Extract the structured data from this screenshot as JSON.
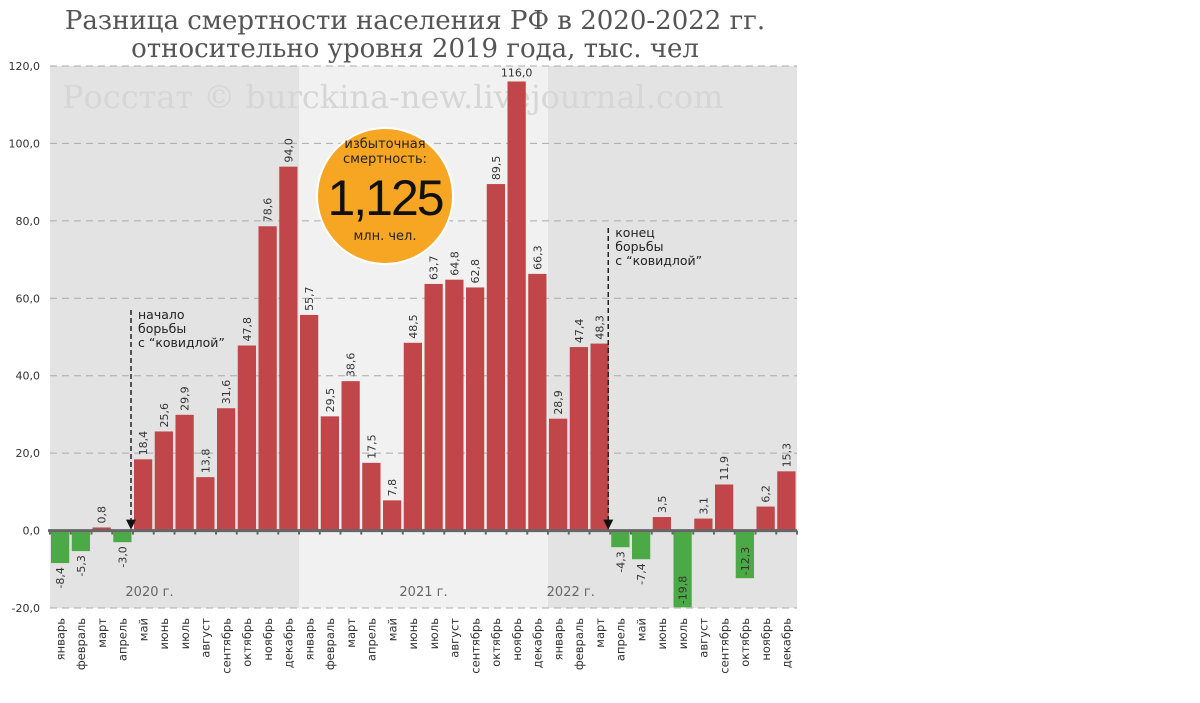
{
  "chart_data": {
    "type": "bar",
    "title": [
      "Разница смертности населения РФ в 2020-2022 гг.",
      "относительно уровня 2019 года, тыс. чел"
    ],
    "watermark": "Росстат © burckina-new.livejournal.com",
    "ylim": [
      -20,
      120
    ],
    "yticks": [
      "120,0",
      "100,0",
      "80,0",
      "60,0",
      "40,0",
      "20,0",
      "0,0",
      "-20,0"
    ],
    "ytick_values": [
      120,
      100,
      80,
      60,
      40,
      20,
      0,
      -20
    ],
    "grid": true,
    "years": [
      "2020 г.",
      "2021 г.",
      "2022 г."
    ],
    "categories": [
      "январь",
      "февраль",
      "март",
      "апрель",
      "май",
      "июнь",
      "июль",
      "август",
      "сентябрь",
      "октябрь",
      "ноябрь",
      "декабрь",
      "январь",
      "февраль",
      "март",
      "апрель",
      "май",
      "июнь",
      "июль",
      "август",
      "сентябрь",
      "октябрь",
      "ноябрь",
      "декабрь",
      "январь",
      "февраль",
      "март",
      "апрель",
      "май",
      "июнь",
      "июль",
      "август",
      "сентябрь",
      "октябрь",
      "ноябрь",
      "декабрь"
    ],
    "values": [
      -8.4,
      -5.3,
      0.8,
      -3.0,
      18.4,
      25.6,
      29.9,
      13.8,
      31.6,
      47.8,
      78.6,
      94.0,
      55.7,
      29.5,
      38.6,
      17.5,
      7.8,
      48.5,
      63.7,
      64.8,
      62.8,
      89.5,
      116.0,
      66.3,
      28.9,
      47.4,
      48.3,
      -4.3,
      -7.4,
      3.5,
      -19.8,
      3.1,
      11.9,
      -12.3,
      6.2,
      15.3
    ],
    "labels": [
      "-8,4",
      "-5,3",
      "0,8",
      "-3,0",
      "18,4",
      "25,6",
      "29,9",
      "13,8",
      "31,6",
      "47,8",
      "78,6",
      "94,0",
      "55,7",
      "29,5",
      "38,6",
      "17,5",
      "7,8",
      "48,5",
      "63,7",
      "64,8",
      "62,8",
      "89,5",
      "116,0",
      "66,3",
      "28,9",
      "47,4",
      "48,3",
      "-4,3",
      "-7,4",
      "3,5",
      "-19,8",
      "3,1",
      "11,9",
      "-12,3",
      "6,2",
      "15,3"
    ],
    "colors": {
      "positive": "#c1464a",
      "negative": "#4caa46",
      "band_dark": "#e3e3e3",
      "band_light": "#f1f1f1",
      "badge": "#f6a623"
    },
    "badge": {
      "line1": "избыточная",
      "line2": "смертность:",
      "value": "1,125",
      "unit": "млн. чел."
    },
    "annotations": [
      {
        "after_index": 3,
        "lines": [
          "начало",
          "борьбы",
          "с “ковидлой”"
        ]
      },
      {
        "after_index": 26,
        "lines": [
          "конец",
          "борьбы",
          "с “ковидлой”"
        ]
      }
    ]
  }
}
